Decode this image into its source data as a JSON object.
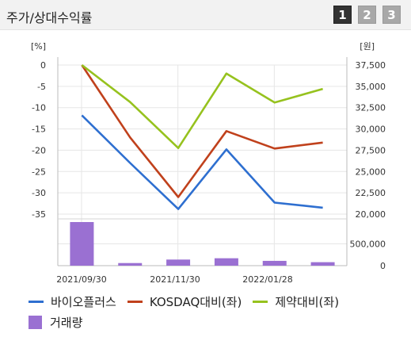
{
  "header": {
    "title": "주가/상대수익률"
  },
  "tabs": [
    {
      "label": "1",
      "active": true
    },
    {
      "label": "2",
      "active": false
    },
    {
      "label": "3",
      "active": false
    }
  ],
  "colors": {
    "series1": "#2e6fd0",
    "series2": "#c0411c",
    "series3": "#96c21e",
    "volume": "#9a70d2",
    "grid": "#e6e6e6"
  },
  "chart_data": {
    "type": "line",
    "left_axis_label": "[%]",
    "right_axis_label": "[원]",
    "left_ticks": [
      "0",
      "-5",
      "-10",
      "-15",
      "-20",
      "-25",
      "-30",
      "-35"
    ],
    "right_ticks": [
      "37,500",
      "35,000",
      "32,500",
      "30,000",
      "27,500",
      "25,000",
      "22,500",
      "20,000"
    ],
    "volume_ticks": [
      "500,000",
      "0"
    ],
    "x_tick_labels": [
      "2021/09/30",
      "2021/11/30",
      "2022/01/28"
    ],
    "ylim_left": [
      -35,
      0
    ],
    "ylim_right": [
      20000,
      37500
    ],
    "volume_ylim": [
      0,
      1000000
    ],
    "series": [
      {
        "name": "바이오플러스",
        "values": [
          -11.8,
          -23.0,
          -33.8,
          -19.8,
          -32.3,
          -33.5
        ]
      },
      {
        "name": "KOSDAQ대비(좌)",
        "values": [
          0,
          -17.0,
          -31.0,
          -15.5,
          -19.6,
          -18.2
        ]
      },
      {
        "name": "제약대비(좌)",
        "values": [
          0,
          -8.7,
          -19.5,
          -2.0,
          -8.8,
          -5.6
        ]
      }
    ],
    "volume": {
      "name": "거래량",
      "values": [
        1000000,
        60000,
        140000,
        170000,
        110000,
        80000
      ]
    },
    "grid": true,
    "legend_position": "bottom"
  }
}
